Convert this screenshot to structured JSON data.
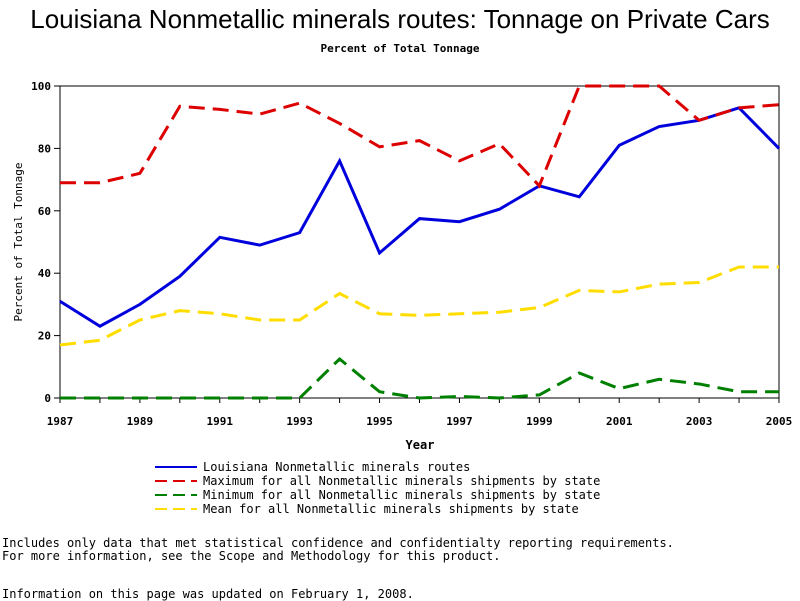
{
  "page": {
    "title": "Louisiana Nonmetallic minerals routes: Tonnage on Private Cars",
    "subtitle": "Percent of Total Tonnage",
    "footnote_line1": "Includes only data that met statistical confidence and confidentialty reporting requirements.",
    "footnote_line2": "For more information, see the Scope and Methodology for this product.",
    "footnote_line3": "Information on this page was updated on February 1, 2008."
  },
  "chart_data": {
    "type": "line",
    "title": "Louisiana Nonmetallic minerals routes: Tonnage on Private Cars",
    "subtitle": "Percent of Total Tonnage",
    "xlabel": "Year",
    "ylabel": "Percent of Total Tonnage",
    "xlim": [
      1987,
      2005
    ],
    "ylim": [
      0,
      100
    ],
    "xticks": [
      1987,
      1989,
      1991,
      1993,
      1995,
      1997,
      1999,
      2001,
      2003,
      2005
    ],
    "yticks": [
      0,
      20,
      40,
      60,
      80,
      100
    ],
    "x": [
      1987,
      1988,
      1989,
      1990,
      1991,
      1992,
      1993,
      1994,
      1995,
      1996,
      1997,
      1998,
      1999,
      2000,
      2001,
      2002,
      2003,
      2004,
      2005
    ],
    "series": [
      {
        "name": "Louisiana Nonmetallic minerals routes",
        "color": "#0000dd",
        "dash": "solid",
        "values": [
          31,
          23,
          30,
          39,
          51.5,
          49,
          53,
          76,
          46.5,
          57.5,
          56.5,
          60.5,
          68,
          64.5,
          81,
          87,
          89,
          93,
          80
        ]
      },
      {
        "name": "Maximum for all Nonmetallic minerals shipments by state",
        "color": "#dd0000",
        "dash": "dashed",
        "values": [
          69,
          69,
          72,
          93.5,
          92.5,
          91,
          94.5,
          88,
          80.5,
          82.5,
          76,
          81.5,
          68,
          100,
          100,
          100,
          89,
          93,
          94
        ]
      },
      {
        "name": "Minimum for all Nonmetallic minerals shipments by state",
        "color": "#008000",
        "dash": "dashed",
        "values": [
          0,
          0,
          0,
          0,
          0,
          0,
          0,
          12.5,
          2,
          0,
          0.5,
          0,
          1,
          8,
          3,
          6,
          4.5,
          2,
          2
        ]
      },
      {
        "name": "Mean for all Nonmetallic minerals shipments by state",
        "color": "#ffdd00",
        "dash": "dashed",
        "values": [
          17,
          18.5,
          25,
          28,
          27,
          25,
          25,
          33.5,
          27,
          26.5,
          27,
          27.5,
          29,
          34.5,
          34,
          36.5,
          37,
          42,
          42
        ]
      }
    ]
  }
}
